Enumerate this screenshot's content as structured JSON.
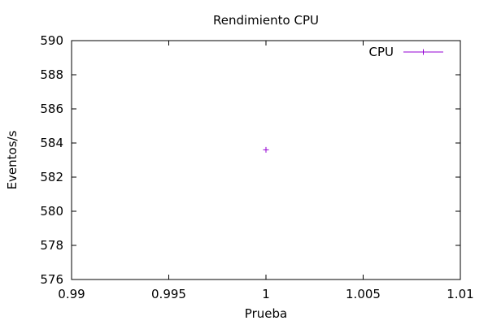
{
  "chart_data": {
    "type": "scatter",
    "title": "Rendimiento CPU",
    "xlabel": "Prueba",
    "ylabel": "Eventos/s",
    "xlim": [
      0.99,
      1.01
    ],
    "ylim": [
      576,
      590
    ],
    "x_ticks": [
      0.99,
      0.995,
      1,
      1.005,
      1.01
    ],
    "x_tick_labels": [
      "0.99",
      "0.995",
      "1",
      "1.005",
      "1.01"
    ],
    "y_ticks": [
      576,
      578,
      580,
      582,
      584,
      586,
      588,
      590
    ],
    "y_tick_labels": [
      "576",
      "578",
      "580",
      "582",
      "584",
      "586",
      "588",
      "590"
    ],
    "grid": false,
    "legend_position": "top-right",
    "series": [
      {
        "name": "CPU",
        "color": "#9400d3",
        "marker": "plus",
        "points": [
          {
            "x": 1,
            "y": 583.6
          }
        ]
      }
    ]
  }
}
